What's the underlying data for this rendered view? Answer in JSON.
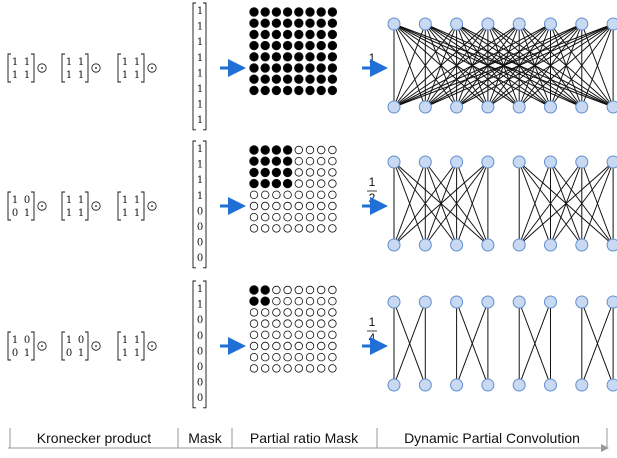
{
  "colors": {
    "arrow": "#1f6fd6",
    "node_fill": "#c9d9f2",
    "node_stroke": "#5f8fd0",
    "dot": "#000000"
  },
  "rows": [
    {
      "kron": [
        [
          "1",
          "1",
          "1",
          "1"
        ],
        [
          "1",
          "1",
          "1",
          "1"
        ],
        [
          "1",
          "1",
          "1",
          "1"
        ]
      ],
      "mask": [
        "1",
        "1",
        "1",
        "1",
        "1",
        "1",
        "1",
        "1"
      ],
      "filled": 8,
      "ratio_num": "1",
      "ratio_den": "",
      "conv_groups": 1
    },
    {
      "kron": [
        [
          "1",
          "0",
          "0",
          "1"
        ],
        [
          "1",
          "1",
          "1",
          "1"
        ],
        [
          "1",
          "1",
          "1",
          "1"
        ]
      ],
      "mask": [
        "1",
        "1",
        "1",
        "1",
        "0",
        "0",
        "0",
        "0"
      ],
      "filled": 4,
      "ratio_num": "1",
      "ratio_den": "2",
      "conv_groups": 2
    },
    {
      "kron": [
        [
          "1",
          "0",
          "0",
          "1"
        ],
        [
          "1",
          "0",
          "0",
          "1"
        ],
        [
          "1",
          "1",
          "1",
          "1"
        ]
      ],
      "mask": [
        "1",
        "1",
        "0",
        "0",
        "0",
        "0",
        "0",
        "0"
      ],
      "filled": 2,
      "ratio_num": "1",
      "ratio_den": "4",
      "conv_groups": 4
    }
  ],
  "odot": "⊙",
  "labels": {
    "kronecker": "Kronecker product",
    "mask": "Mask",
    "partial": "Partial ratio Mask",
    "dynamic": "Dynamic Partial Convolution"
  }
}
